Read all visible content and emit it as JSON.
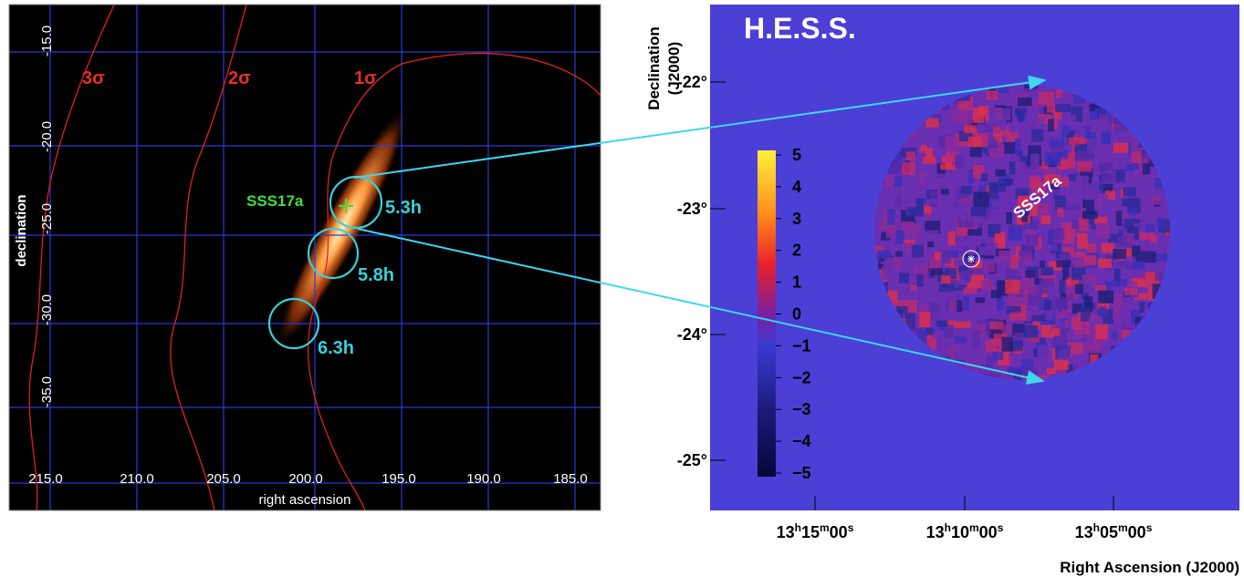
{
  "left_panel": {
    "x_axis_label": "right ascension",
    "y_axis_label": "declination",
    "x_ticks": [
      "215.0",
      "210.0",
      "205.0",
      "200.0",
      "195.0",
      "190.0",
      "185.0"
    ],
    "y_ticks": [
      "-15.0",
      "-20.0",
      "-25.0",
      "-30.0",
      "-35.0"
    ],
    "contour_labels": [
      "3σ",
      "2σ",
      "1σ"
    ],
    "source_label": "SSS17a",
    "pointings": [
      "5.3h",
      "5.8h",
      "6.3h"
    ]
  },
  "right_panel": {
    "title": "H.E.S.S.",
    "y_axis_label": [
      "Declination",
      "(J2000)"
    ],
    "x_axis_label": "Right Ascension (J2000)",
    "y_ticks": [
      "-22°",
      "-23°",
      "-24°",
      "-25°"
    ],
    "x_ticks": [
      [
        "13",
        "h",
        "15",
        "m",
        "00",
        "s"
      ],
      [
        "13",
        "h",
        "10",
        "m",
        "00",
        "s"
      ],
      [
        "13",
        "h",
        "05",
        "m",
        "00",
        "s"
      ]
    ],
    "colorbar_ticks": [
      "5",
      "4",
      "3",
      "2",
      "1",
      "0",
      "−1",
      "−2",
      "−3",
      "−4",
      "−5"
    ],
    "source_label": "SSS17a"
  }
}
